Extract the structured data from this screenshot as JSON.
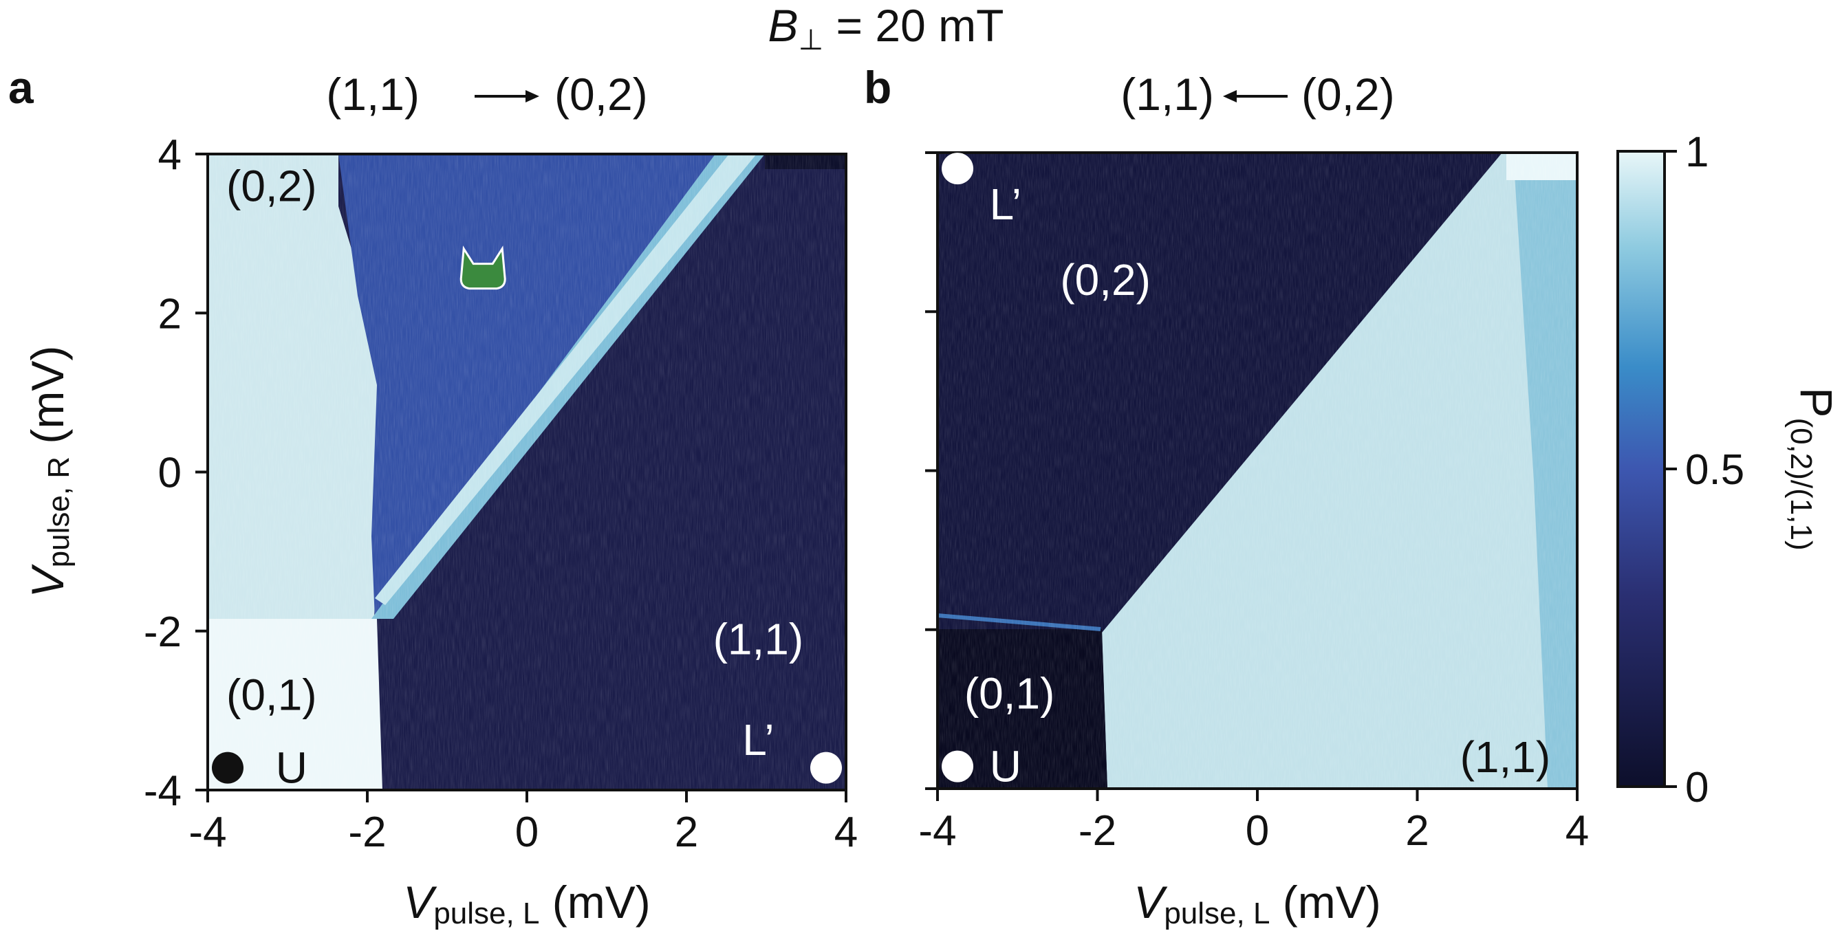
{
  "figure_title": {
    "prefix": "B",
    "subscript": "⊥",
    "rest": " = 20 mT"
  },
  "chart_data": [
    {
      "type": "heatmap",
      "panel": "a",
      "title": "(1,1) → (0,2)",
      "title_parts": {
        "from": "(1,1)",
        "to": "(0,2)",
        "direction": "right"
      },
      "xlabel": {
        "main": "V",
        "sub": "pulse, L",
        "unit": " (mV)"
      },
      "ylabel": {
        "main": "V",
        "sub": "pulse, R",
        "unit": " (mV)"
      },
      "xlim": [
        -4,
        4
      ],
      "ylim": [
        -4,
        4
      ],
      "xticks": [
        -4,
        -2,
        0,
        2,
        4
      ],
      "yticks": [
        -4,
        -2,
        0,
        2,
        4
      ],
      "xtick_labels": [
        "-4",
        "-2",
        "0",
        "2",
        "4"
      ],
      "ytick_labels": [
        "-4",
        "-2",
        "0",
        "2",
        "4"
      ],
      "grid": false,
      "colormap_scale": "P(0,2)/(1,1), 0 to 1",
      "regions": [
        {
          "label": "(0,2)",
          "x": -3.2,
          "y": 3.6,
          "color": "dark"
        },
        {
          "label": "(0,1)",
          "x": -3.2,
          "y": -2.8,
          "color": "dark"
        },
        {
          "label": "(1,1)",
          "x": 2.9,
          "y": -2.1,
          "color": "white"
        }
      ],
      "markers": [
        {
          "label": "U",
          "x": -3.75,
          "y": -3.72,
          "fill": "#111111",
          "label_color": "dark",
          "label_dx": 0.8,
          "label_dy": 0.0
        },
        {
          "label": "L’",
          "x": 3.75,
          "y": -3.72,
          "fill": "#ffffff",
          "label_color": "white",
          "label_dx": -0.85,
          "label_dy": 0.35
        }
      ],
      "icon": {
        "name": "cat-head-icon",
        "x": -0.55,
        "y": 2.55,
        "color": "#3b8a3e"
      },
      "description_values": {
        "region_0_2_upper_left_P": 0.9,
        "triangle_between_transitions_P": 0.5,
        "band_along_diagonal_P": 0.8,
        "lower_right_1_1_P": 0.1,
        "lower_left_0_1_P": 0.95,
        "transition_line": "from (-2.0,-2.0) to (3.0,4.0)"
      }
    },
    {
      "type": "heatmap",
      "panel": "b",
      "title": "(1,1) ← (0,2)",
      "title_parts": {
        "from": "(1,1)",
        "to": "(0,2)",
        "direction": "left"
      },
      "xlabel": {
        "main": "V",
        "sub": "pulse, L",
        "unit": " (mV)"
      },
      "xlim": [
        -4,
        4
      ],
      "ylim": [
        -4,
        4
      ],
      "xticks": [
        -4,
        -2,
        0,
        2,
        4
      ],
      "xtick_labels": [
        "-4",
        "-2",
        "0",
        "2",
        "4"
      ],
      "yticks": [
        -4,
        -2,
        0,
        2,
        4
      ],
      "grid": false,
      "regions": [
        {
          "label": "(0,2)",
          "x": -1.9,
          "y": 2.4,
          "color": "white"
        },
        {
          "label": "(0,1)",
          "x": -3.1,
          "y": -2.8,
          "color": "white"
        },
        {
          "label": "(1,1)",
          "x": 3.1,
          "y": -3.6,
          "color": "dark"
        }
      ],
      "markers": [
        {
          "label": "L’",
          "x": -3.75,
          "y": 3.8,
          "fill": "#ffffff",
          "label_color": "white",
          "label_dx": 0.6,
          "label_dy": -0.45
        },
        {
          "label": "U",
          "x": -3.75,
          "y": -3.72,
          "fill": "#ffffff",
          "label_color": "white",
          "label_dx": 0.6,
          "label_dy": 0.0
        }
      ],
      "description_values": {
        "upper_left_0_2_P": 0.05,
        "lower_right_1_1_P": 0.88,
        "lower_left_0_1_P": 0.02,
        "transition_line": "from (-2.0,-2.0) to (3.0,4.0)"
      }
    }
  ],
  "colorbar": {
    "label_main": "P",
    "label_sub": "(0,2)/(1,1)",
    "ticks": [
      0,
      0.5,
      1
    ],
    "tick_labels": [
      "0",
      "0.5",
      "1"
    ],
    "colors": [
      "#0d0f2b",
      "#2a2f72",
      "#3d57b0",
      "#3a8cc8",
      "#8fcbe0",
      "#e8f6f8"
    ]
  },
  "panel_letters": [
    "a",
    "b"
  ]
}
